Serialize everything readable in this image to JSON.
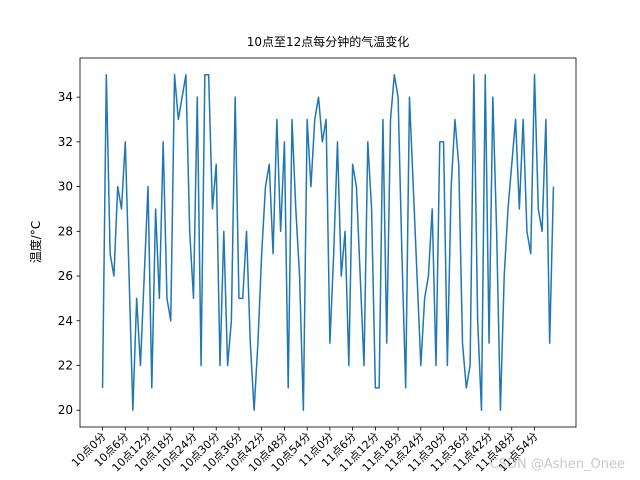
{
  "chart_data": {
    "type": "line",
    "title": "10点至12点每分钟的气温变化",
    "y_label": "温度/°C",
    "watermark": "CSDN @Ashen_Onee",
    "color": "#1f77b4",
    "categories": [
      "10点0分",
      null,
      null,
      null,
      null,
      null,
      "10点6分",
      null,
      null,
      null,
      null,
      null,
      "10点12分",
      null,
      null,
      null,
      null,
      null,
      "10点18分",
      null,
      null,
      null,
      null,
      null,
      "10点24分",
      null,
      null,
      null,
      null,
      null,
      "10点30分",
      null,
      null,
      null,
      null,
      null,
      "10点36分",
      null,
      null,
      null,
      null,
      null,
      "10点42分",
      null,
      null,
      null,
      null,
      null,
      "10点48分",
      null,
      null,
      null,
      null,
      null,
      "10点54分",
      null,
      null,
      null,
      null,
      null,
      "11点0分",
      null,
      null,
      null,
      null,
      null,
      "11点6分",
      null,
      null,
      null,
      null,
      null,
      "11点12分",
      null,
      null,
      null,
      null,
      null,
      "11点18分",
      null,
      null,
      null,
      null,
      null,
      "11点24分",
      null,
      null,
      null,
      null,
      null,
      "11点30分",
      null,
      null,
      null,
      null,
      null,
      "11点36分",
      null,
      null,
      null,
      null,
      null,
      "11点42分",
      null,
      null,
      null,
      null,
      null,
      "11点48分",
      null,
      null,
      null,
      null,
      null,
      "11点54分",
      null,
      null,
      null,
      null,
      null
    ],
    "values": [
      21,
      35,
      27,
      26,
      30,
      29,
      32,
      26,
      20,
      25,
      22,
      26,
      30,
      21,
      29,
      25,
      32,
      25,
      24,
      35,
      33,
      34,
      35,
      28,
      25,
      34,
      22,
      35,
      35,
      29,
      31,
      22,
      28,
      22,
      24,
      34,
      25,
      25,
      28,
      23,
      20,
      23,
      27,
      30,
      31,
      27,
      33,
      28,
      32,
      21,
      33,
      29,
      26,
      20,
      33,
      30,
      33,
      34,
      32,
      33,
      23,
      27,
      32,
      26,
      28,
      22,
      31,
      30,
      26,
      22,
      32,
      29,
      21,
      21,
      33,
      23,
      33,
      35,
      34,
      27,
      21,
      34,
      30,
      26,
      22,
      25,
      26,
      29,
      22,
      32,
      32,
      22,
      30,
      33,
      31,
      23,
      21,
      22,
      35,
      24,
      20,
      35,
      23,
      34,
      28,
      20,
      26,
      29,
      31,
      33,
      29,
      33,
      28,
      27,
      35,
      29,
      28,
      33,
      23,
      30
    ],
    "ylim": [
      19.25,
      35.75
    ],
    "yticks": [
      20,
      22,
      24,
      26,
      28,
      30,
      32,
      34
    ]
  }
}
